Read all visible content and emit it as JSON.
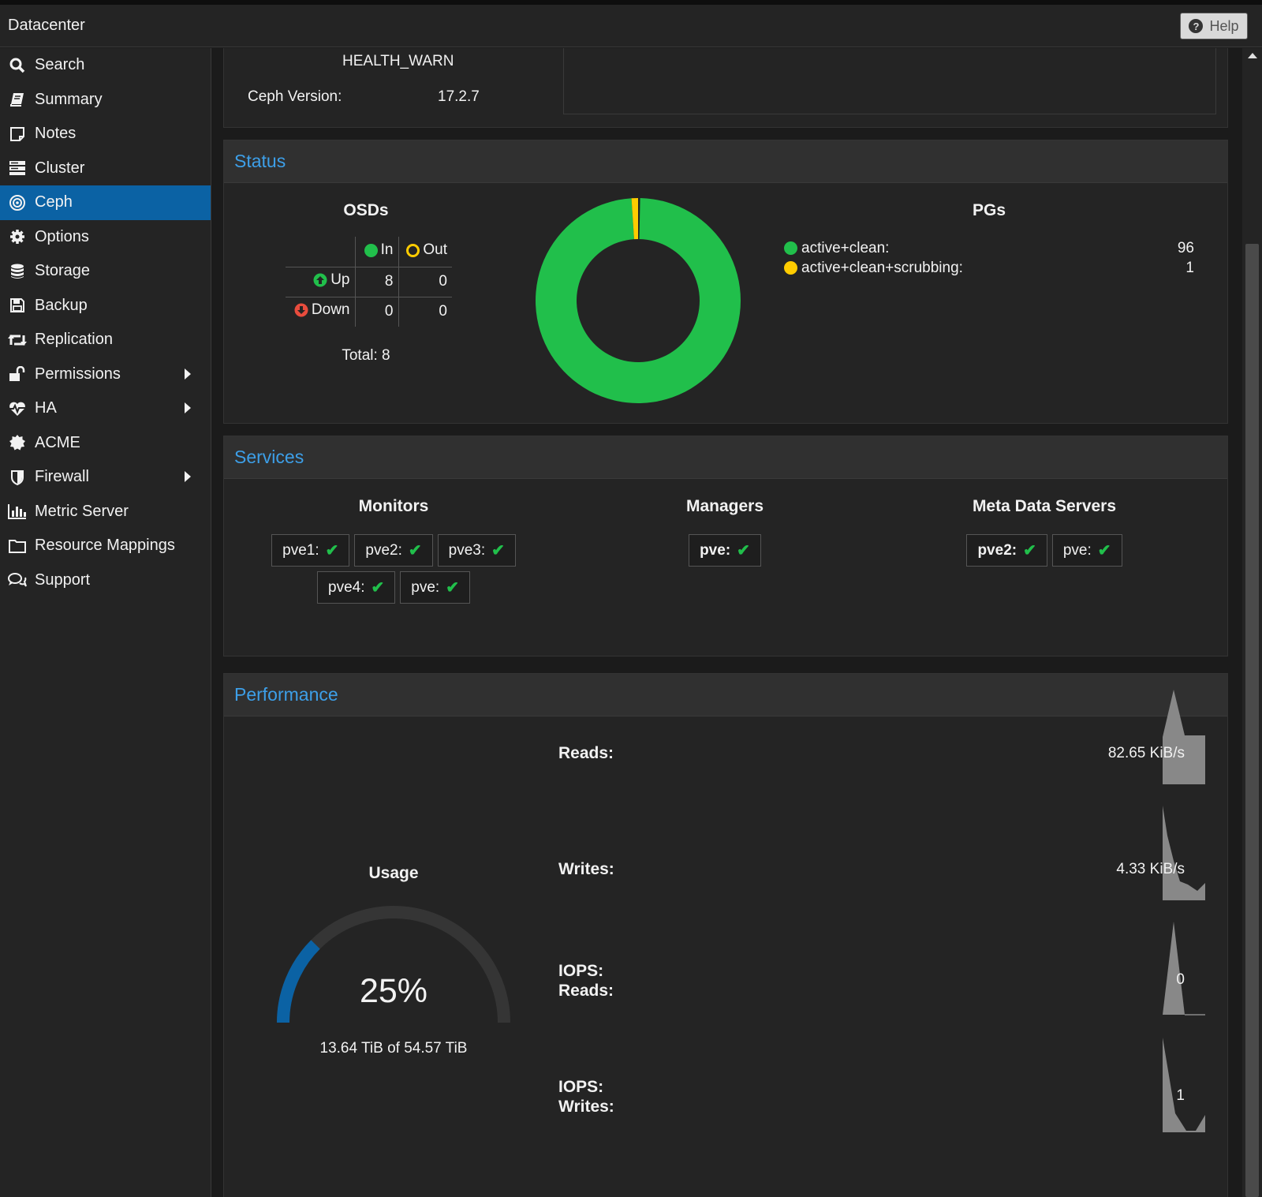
{
  "header": {
    "title": "Datacenter",
    "help_label": "Help"
  },
  "sidebar": {
    "items": [
      {
        "label": "Search",
        "icon": "search-icon"
      },
      {
        "label": "Summary",
        "icon": "book-icon"
      },
      {
        "label": "Notes",
        "icon": "notes-icon"
      },
      {
        "label": "Cluster",
        "icon": "server-icon"
      },
      {
        "label": "Ceph",
        "icon": "ceph-icon",
        "active": true
      },
      {
        "label": "Options",
        "icon": "gear-icon"
      },
      {
        "label": "Storage",
        "icon": "database-icon"
      },
      {
        "label": "Backup",
        "icon": "floppy-icon"
      },
      {
        "label": "Replication",
        "icon": "retweet-icon"
      },
      {
        "label": "Permissions",
        "icon": "unlock-icon",
        "has_submenu": true
      },
      {
        "label": "HA",
        "icon": "heartbeat-icon",
        "has_submenu": true
      },
      {
        "label": "ACME",
        "icon": "certificate-icon"
      },
      {
        "label": "Firewall",
        "icon": "shield-icon",
        "has_submenu": true
      },
      {
        "label": "Metric Server",
        "icon": "bar-chart-icon"
      },
      {
        "label": "Resource Mappings",
        "icon": "folder-icon"
      },
      {
        "label": "Support",
        "icon": "comments-icon"
      }
    ]
  },
  "health": {
    "status": "HEALTH_WARN",
    "version_label": "Ceph Version:",
    "version": "17.2.7"
  },
  "status": {
    "title": "Status",
    "osds": {
      "title": "OSDs",
      "col_in": "In",
      "col_out": "Out",
      "row_up": "Up",
      "row_down": "Down",
      "up_in": "8",
      "up_out": "0",
      "down_in": "0",
      "down_out": "0",
      "total": "Total: 8"
    },
    "pgs": {
      "title": "PGs",
      "items": [
        {
          "name": "active+clean:",
          "count": "96",
          "color": "#21bf4b"
        },
        {
          "name": "active+clean+scrubbing:",
          "count": "1",
          "color": "#ffcc00"
        }
      ]
    }
  },
  "services": {
    "title": "Services",
    "monitors": {
      "title": "Monitors",
      "items": [
        "pve1:",
        "pve2:",
        "pve3:",
        "pve4:",
        "pve:"
      ]
    },
    "managers": {
      "title": "Managers",
      "items": [
        "pve:"
      ]
    },
    "mds": {
      "title": "Meta Data Servers",
      "items": [
        "pve2:",
        "pve:"
      ]
    }
  },
  "performance": {
    "title": "Performance",
    "usage": {
      "title": "Usage",
      "percent_label": "25%",
      "percent": 0.25,
      "text": "13.64 TiB of 54.57 TiB"
    },
    "reads": {
      "label": "Reads:",
      "value": "82.65 KiB/s"
    },
    "writes": {
      "label": "Writes:",
      "value": "4.33 KiB/s"
    },
    "iops_reads": {
      "label_line1": "IOPS:",
      "label_line2": "Reads:",
      "value": "0"
    },
    "iops_writes": {
      "label_line1": "IOPS:",
      "label_line2": "Writes:",
      "value": "1"
    }
  },
  "colors": {
    "accent": "#0b62a4",
    "ok": "#21bf4b",
    "warn": "#ffcc00",
    "error": "#e84c3d",
    "link": "#3d9fe8"
  }
}
